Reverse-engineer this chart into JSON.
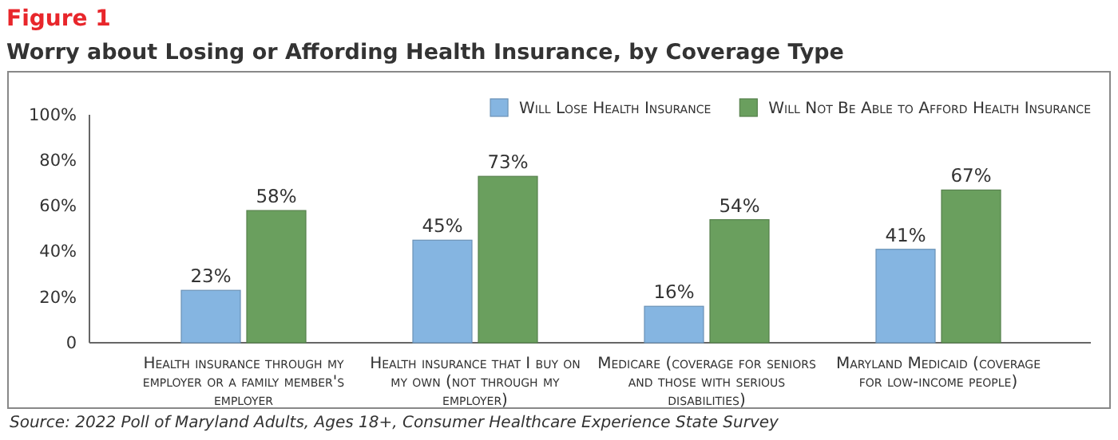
{
  "chart_data": {
    "type": "bar",
    "title": "Figure 1",
    "subtitle": "Worry about Losing or Affording Health Insurance, by Coverage Type",
    "categories": [
      "Health insurance through my employer or a family member's employer",
      "Health insurance that I buy on my own (not through my employer)",
      "Medicare (coverage for seniors and those with serious disabilities)",
      "Maryland Medicaid (coverage for low-income people)"
    ],
    "series": [
      {
        "name": "Will Lose Health Insurance",
        "color": "#85b5e1",
        "values": [
          23,
          45,
          16,
          41
        ],
        "value_labels": [
          "23%",
          "45%",
          "16%",
          "41%"
        ]
      },
      {
        "name": "Will Not Be Able to Afford Health Insurance",
        "color": "#6a9f5e",
        "values": [
          58,
          73,
          54,
          67
        ],
        "value_labels": [
          "58%",
          "73%",
          "54%",
          "67%"
        ]
      }
    ],
    "ylim": [
      0,
      100
    ],
    "yticks": [
      {
        "value": 0,
        "label": "0"
      },
      {
        "value": 20,
        "label": "20%"
      },
      {
        "value": 40,
        "label": "40%"
      },
      {
        "value": 60,
        "label": "60%"
      },
      {
        "value": 80,
        "label": "80%"
      },
      {
        "value": 100,
        "label": "100%"
      }
    ],
    "grid": false,
    "legend": "top right",
    "annotations": [
      "Source: 2022 Poll of Maryland Adults, Ages 18+, Consumer Healthcare Experience State Survey"
    ]
  }
}
